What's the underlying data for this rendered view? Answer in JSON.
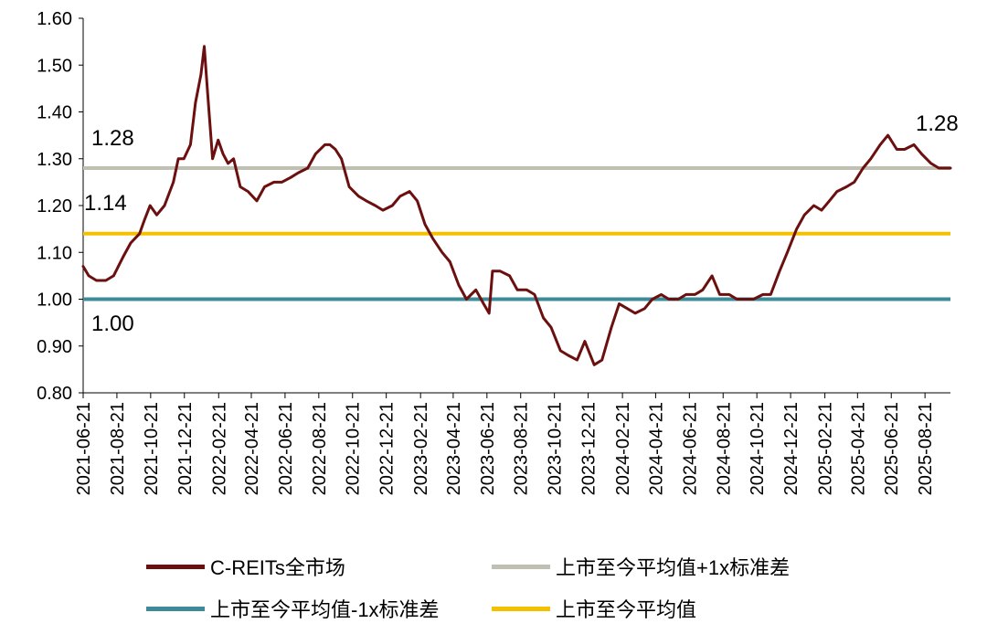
{
  "chart_data": {
    "type": "line",
    "title": "",
    "xlabel": "",
    "ylabel": "",
    "ylim": [
      0.8,
      1.6
    ],
    "y_ticks": [
      "1.60",
      "1.50",
      "1.40",
      "1.30",
      "1.20",
      "1.10",
      "1.00",
      "0.90",
      "0.80"
    ],
    "x_ticks": [
      "2021-06-21",
      "2021-08-21",
      "2021-10-21",
      "2021-12-21",
      "2022-02-21",
      "2022-04-21",
      "2022-06-21",
      "2022-08-21",
      "2022-10-21",
      "2022-12-21",
      "2023-02-21",
      "2023-04-21",
      "2023-06-21",
      "2023-08-21",
      "2023-10-21",
      "2023-12-21",
      "2024-02-21",
      "2024-04-21",
      "2024-06-21",
      "2024-08-21",
      "2024-10-21",
      "2024-12-21",
      "2025-02-21",
      "2025-04-21",
      "2025-06-21",
      "2025-08-21"
    ],
    "x_range": [
      "2021-06-21",
      "2025-10-06"
    ],
    "grid": false,
    "legend_position": "bottom",
    "series": [
      {
        "name": "C-REITs全市场",
        "color": "#6b0f0f",
        "x": [
          "2021-06-21",
          "2021-07-01",
          "2021-07-15",
          "2021-08-01",
          "2021-08-15",
          "2021-09-01",
          "2021-09-15",
          "2021-10-01",
          "2021-10-10",
          "2021-10-20",
          "2021-11-01",
          "2021-11-15",
          "2021-12-01",
          "2021-12-10",
          "2021-12-20",
          "2022-01-01",
          "2022-01-10",
          "2022-01-20",
          "2022-01-26",
          "2022-02-01",
          "2022-02-10",
          "2022-02-20",
          "2022-03-01",
          "2022-03-10",
          "2022-03-20",
          "2022-04-01",
          "2022-04-15",
          "2022-05-01",
          "2022-05-15",
          "2022-06-01",
          "2022-06-15",
          "2022-07-01",
          "2022-07-15",
          "2022-08-01",
          "2022-08-15",
          "2022-09-01",
          "2022-09-10",
          "2022-09-20",
          "2022-10-01",
          "2022-10-15",
          "2022-11-01",
          "2022-11-15",
          "2022-12-01",
          "2022-12-15",
          "2023-01-01",
          "2023-01-15",
          "2023-02-01",
          "2023-02-15",
          "2023-03-01",
          "2023-03-15",
          "2023-04-01",
          "2023-04-15",
          "2023-05-01",
          "2023-05-15",
          "2023-06-01",
          "2023-06-15",
          "2023-06-25",
          "2023-07-01",
          "2023-07-15",
          "2023-08-01",
          "2023-08-15",
          "2023-09-01",
          "2023-09-15",
          "2023-10-01",
          "2023-10-15",
          "2023-11-01",
          "2023-11-15",
          "2023-12-01",
          "2023-12-15",
          "2024-01-01",
          "2024-01-15",
          "2024-02-01",
          "2024-02-15",
          "2024-03-01",
          "2024-03-15",
          "2024-04-01",
          "2024-04-15",
          "2024-05-01",
          "2024-05-15",
          "2024-06-01",
          "2024-06-15",
          "2024-07-01",
          "2024-07-15",
          "2024-08-01",
          "2024-08-15",
          "2024-09-01",
          "2024-09-15",
          "2024-10-01",
          "2024-10-15",
          "2024-11-01",
          "2024-11-15",
          "2024-12-01",
          "2024-12-15",
          "2025-01-01",
          "2025-01-15",
          "2025-02-01",
          "2025-02-15",
          "2025-03-01",
          "2025-03-15",
          "2025-04-01",
          "2025-04-15",
          "2025-05-01",
          "2025-05-15",
          "2025-06-01",
          "2025-06-15",
          "2025-07-01",
          "2025-07-15",
          "2025-08-01",
          "2025-08-15",
          "2025-09-01",
          "2025-09-15",
          "2025-10-06"
        ],
        "values": [
          1.07,
          1.05,
          1.04,
          1.04,
          1.05,
          1.09,
          1.12,
          1.14,
          1.17,
          1.2,
          1.18,
          1.2,
          1.25,
          1.3,
          1.3,
          1.33,
          1.42,
          1.48,
          1.54,
          1.44,
          1.3,
          1.34,
          1.31,
          1.29,
          1.3,
          1.24,
          1.23,
          1.21,
          1.24,
          1.25,
          1.25,
          1.26,
          1.27,
          1.28,
          1.31,
          1.33,
          1.33,
          1.32,
          1.3,
          1.24,
          1.22,
          1.21,
          1.2,
          1.19,
          1.2,
          1.22,
          1.23,
          1.21,
          1.16,
          1.13,
          1.1,
          1.08,
          1.03,
          1.0,
          1.02,
          0.99,
          0.97,
          1.06,
          1.06,
          1.05,
          1.02,
          1.02,
          1.01,
          0.96,
          0.94,
          0.89,
          0.88,
          0.87,
          0.91,
          0.86,
          0.87,
          0.94,
          0.99,
          0.98,
          0.97,
          0.98,
          1.0,
          1.01,
          1.0,
          1.0,
          1.01,
          1.01,
          1.02,
          1.05,
          1.01,
          1.01,
          1.0,
          1.0,
          1.0,
          1.01,
          1.01,
          1.06,
          1.1,
          1.15,
          1.18,
          1.2,
          1.19,
          1.21,
          1.23,
          1.24,
          1.25,
          1.28,
          1.3,
          1.33,
          1.35,
          1.32,
          1.32,
          1.33,
          1.31,
          1.29,
          1.28,
          1.28
        ]
      },
      {
        "name": "上市至今平均值+1x标准差",
        "color": "#bfbfb2",
        "constant": 1.28
      },
      {
        "name": "上市至今平均值-1x标准差",
        "color": "#3d8a98",
        "constant": 1.0
      },
      {
        "name": "上市至今平均值",
        "color": "#f5c000",
        "constant": 1.14
      }
    ],
    "annotations": [
      "1.28",
      "1.14",
      "1.00",
      "1.28"
    ]
  }
}
